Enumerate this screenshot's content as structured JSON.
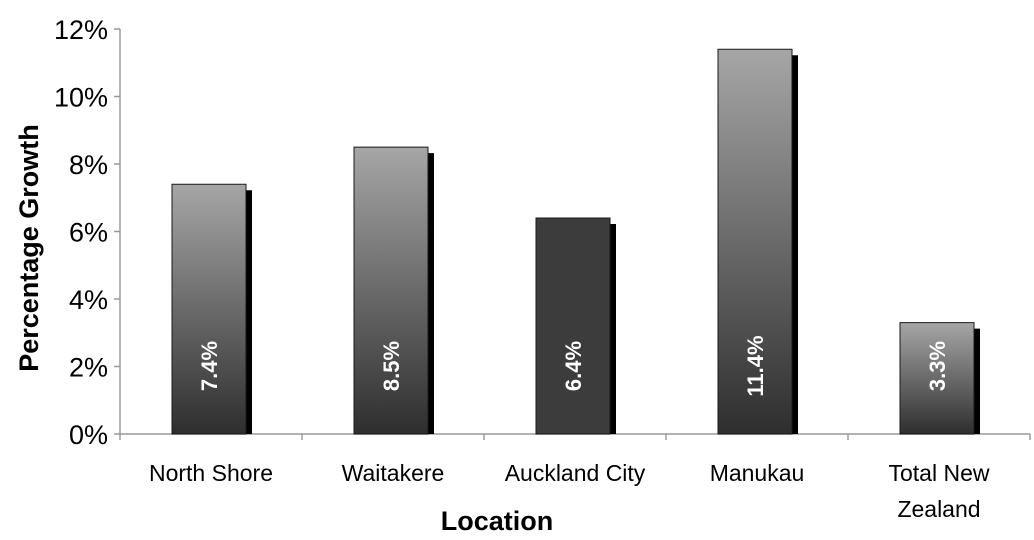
{
  "chart_data": {
    "type": "bar",
    "title": "",
    "xlabel": "Location",
    "ylabel": "Percentage Growth",
    "categories": [
      "North Shore",
      "Waitakere",
      "Auckland City",
      "Manukau",
      "Total New Zealand"
    ],
    "category_lines": [
      [
        "North Shore"
      ],
      [
        "Waitakere"
      ],
      [
        "Auckland City"
      ],
      [
        "Manukau"
      ],
      [
        "Total New",
        "Zealand"
      ]
    ],
    "values": [
      7.4,
      8.5,
      6.4,
      11.4,
      3.3
    ],
    "data_labels": [
      "7.4%",
      "8.5%",
      "6.4%",
      "11.4%",
      "3.3%"
    ],
    "ylim": [
      0,
      12
    ],
    "yticks": [
      0,
      2,
      4,
      6,
      8,
      10,
      12
    ],
    "ytick_labels": [
      "0%",
      "2%",
      "4%",
      "6%",
      "8%",
      "10%",
      "12%"
    ],
    "grid": false,
    "legend": "none",
    "colors": {
      "bar_gradient_top": "#a6a6a6",
      "bar_gradient_bottom": "#2e2e2e",
      "bar_highlight": "#3c3c3c",
      "bar_shadow": "#000000",
      "axis": "#9a9a9a",
      "label_text": "#ffffff"
    },
    "highlighted_category": "Auckland City"
  }
}
